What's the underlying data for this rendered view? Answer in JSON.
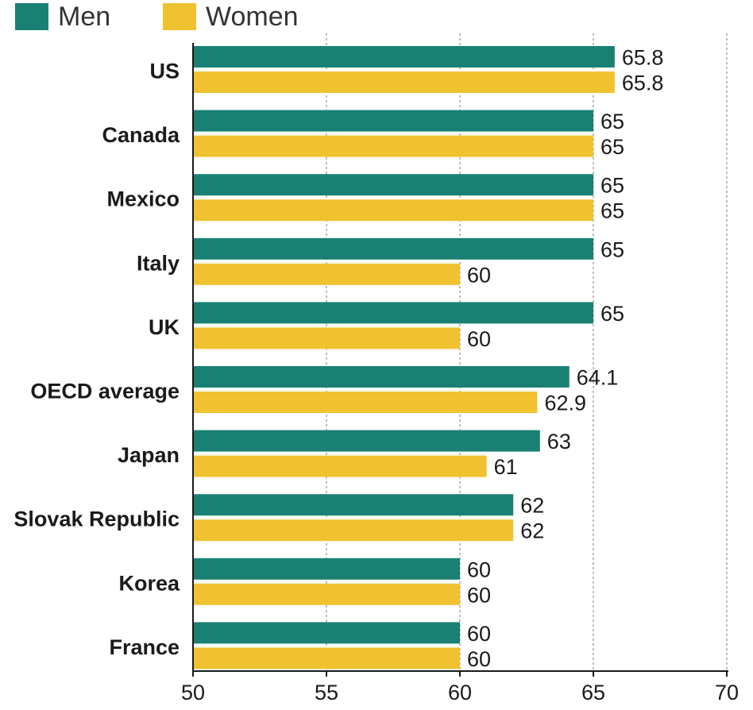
{
  "colors": {
    "men": "#1a8074",
    "women": "#f0c230",
    "grid": "#9a9a9a",
    "axis": "#1a1a1a"
  },
  "chart_data": {
    "type": "bar",
    "orientation": "horizontal",
    "categories": [
      "US",
      "Canada",
      "Mexico",
      "Italy",
      "UK",
      "OECD average",
      "Japan",
      "Slovak Republic",
      "Korea",
      "France"
    ],
    "series": [
      {
        "name": "Men",
        "color": "#1a8074",
        "values": [
          65.8,
          65,
          65,
          65,
          65,
          64.1,
          63,
          62,
          60,
          60
        ],
        "labels": [
          "65.8",
          "65",
          "65",
          "65",
          "65",
          "64.1",
          "63",
          "62",
          "60",
          "60"
        ]
      },
      {
        "name": "Women",
        "color": "#f0c230",
        "values": [
          65.8,
          65,
          65,
          60,
          60,
          62.9,
          61,
          62,
          60,
          60
        ],
        "labels": [
          "65.8",
          "65",
          "65",
          "60",
          "60",
          "62.9",
          "61",
          "62",
          "60",
          "60"
        ]
      }
    ],
    "xlim": [
      50,
      70
    ],
    "xticks": [
      50,
      55,
      60,
      65,
      70
    ],
    "xtick_labels": [
      "50",
      "55",
      "60",
      "65",
      "70"
    ],
    "grid": "vertical dashed",
    "legend": "top-left",
    "title": "",
    "xlabel": "",
    "ylabel": ""
  }
}
